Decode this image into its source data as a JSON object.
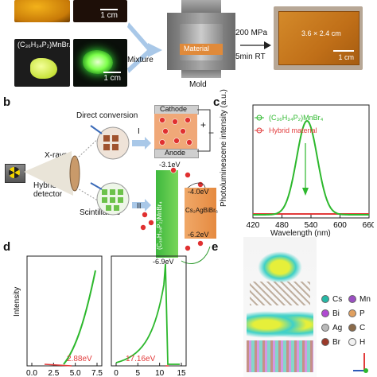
{
  "panel_a": {
    "photo_scale_top": "1 cm",
    "compound": "(C₃₆H₃₄P₂)MnBr₄",
    "photo_scale_bottom": "1 cm",
    "mixture": "Mixture",
    "material": "Material",
    "mold": "Mold",
    "pressure": "200 MPa",
    "time": "5min RT",
    "film_size": "3.6 × 2.4 cm",
    "film_scale": "1 cm"
  },
  "panel_b": {
    "letter": "b",
    "direct_conversion": "Direct conversion",
    "roman_one": "I",
    "cathode": "Cathode",
    "anode": "Anode",
    "plus": "+",
    "minus": "−",
    "xrays": "X-rays",
    "hybrid_detector": "Hybrid detector",
    "scintillators": "Scintillators",
    "roman_two": "II",
    "level_top": "-3.1eV",
    "level_mid": "-4.0eV",
    "level_low": "-6.2eV",
    "level_bottom": "-6.9eV",
    "green_material": "(C₃₆H₃₄P₂)MnBr₄",
    "cs_material": "Cs₂AgBiBr₆"
  },
  "panel_c": {
    "letter": "c",
    "ylabel": "Photoluminescene intensity (a.u.)",
    "xlabel": "Wavelength (nm)",
    "legend_green": "(C₃₆H₃₄P₂)MnBr₄",
    "legend_red": "Hybrid material",
    "ticks": [
      "420",
      "480",
      "540",
      "600",
      "660"
    ],
    "colors": {
      "green": "#2db82d",
      "red": "#e23b3b"
    }
  },
  "panel_d": {
    "letter": "d",
    "ylabel": "Intensity",
    "left_value": "2.88eV",
    "right_value": "17.16eV",
    "left_ticks": [
      "0.0",
      "2.5",
      "5.0",
      "7.5"
    ],
    "right_ticks": [
      "0",
      "5",
      "10",
      "15"
    ]
  },
  "panel_e": {
    "letter": "e",
    "legend": [
      {
        "sym": "Cs",
        "color": "#26b8a5"
      },
      {
        "sym": "Mn",
        "color": "#9a4fc2"
      },
      {
        "sym": "Bi",
        "color": "#b04ad2"
      },
      {
        "sym": "P",
        "color": "#e0a060"
      },
      {
        "sym": "Ag",
        "color": "#b9b9b9"
      },
      {
        "sym": "C",
        "color": "#8a6a4a"
      },
      {
        "sym": "Br",
        "color": "#9b3a2a"
      },
      {
        "sym": "H",
        "color": "#f2f2f2"
      }
    ]
  }
}
